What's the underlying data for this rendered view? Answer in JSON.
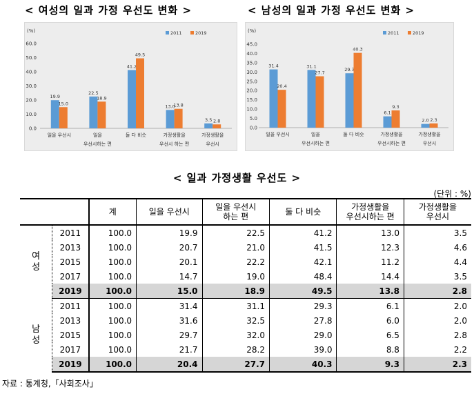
{
  "chart_data": [
    {
      "type": "bar",
      "title": "< 여성의 일과 가정 우선도 변화 >",
      "ylabel": "(%)",
      "ylim": [
        0,
        60
      ],
      "yticks": [
        0.0,
        10.0,
        20.0,
        30.0,
        40.0,
        50.0,
        60.0
      ],
      "tick_labels": [
        "0.0",
        "10.0",
        "20.0",
        "30.0",
        "40.0",
        "50.0",
        "60.0"
      ],
      "legend": "top-right",
      "categories": [
        [
          "일을 우선시"
        ],
        [
          "일을",
          "우선시하는 편"
        ],
        [
          "둘 다 비슷"
        ],
        [
          "가정생활을",
          "우선시 하는 편"
        ],
        [
          "가정생활을",
          "우선시"
        ]
      ],
      "series": [
        {
          "name": "2011",
          "color": "#5B9BD5",
          "values": [
            19.9,
            22.5,
            41.2,
            13.0,
            3.5
          ],
          "labels": [
            "19.9",
            "22.5",
            "41.2",
            "13.0",
            "3.5"
          ]
        },
        {
          "name": "2019",
          "color": "#ED7D31",
          "values": [
            15.0,
            18.9,
            49.5,
            13.8,
            2.8
          ],
          "labels": [
            "15.0",
            "18.9",
            "49.5",
            "13.8",
            "2.8"
          ]
        }
      ]
    },
    {
      "type": "bar",
      "title": "< 남성의 일과 가정 우선도 변화 >",
      "ylabel": "(%)",
      "ylim": [
        0,
        45
      ],
      "yticks": [
        0.0,
        5.0,
        10.0,
        15.0,
        20.0,
        25.0,
        30.0,
        35.0,
        40.0,
        45.0
      ],
      "tick_labels": [
        "0.0",
        "5.0",
        "10.0",
        "15.0",
        "20.0",
        "25.0",
        "30.0",
        "35.0",
        "40.0",
        "45.0"
      ],
      "legend": "top-right",
      "categories": [
        [
          "일을 우선시"
        ],
        [
          "일을",
          "우선시하는 편"
        ],
        [
          "둘 다 비슷"
        ],
        [
          "가정생활을",
          "우선시하는 편"
        ],
        [
          "가정생활을",
          "우선시"
        ]
      ],
      "series": [
        {
          "name": "2011",
          "color": "#5B9BD5",
          "values": [
            31.4,
            31.1,
            29.3,
            6.1,
            2.0
          ],
          "labels": [
            "31.4",
            "31.1",
            "29.3",
            "6.1",
            "2.0"
          ]
        },
        {
          "name": "2019",
          "color": "#ED7D31",
          "values": [
            20.4,
            27.7,
            40.3,
            9.3,
            2.3
          ],
          "labels": [
            "20.4",
            "27.7",
            "40.3",
            "9.3",
            "2.3"
          ]
        }
      ]
    },
    {
      "type": "table",
      "title": "< 일과 가정생활 우선도 >",
      "unit": "(단위 : %)",
      "source": "자료 : 통계청,「사회조사」",
      "headers": [
        [
          "계"
        ],
        [
          "일을 우선시"
        ],
        [
          "일을 우선시",
          "하는 편"
        ],
        [
          "둘 다 비슷"
        ],
        [
          "가정생활을",
          "우선시하는 편"
        ],
        [
          "가정생활을",
          "우선시"
        ]
      ],
      "groups": [
        {
          "label": [
            "여",
            "성"
          ],
          "rows": [
            {
              "year": "2011",
              "values": [
                "100.0",
                "19.9",
                "22.5",
                "41.2",
                "13.0",
                "3.5"
              ],
              "highlight": false
            },
            {
              "year": "2013",
              "values": [
                "100.0",
                "20.7",
                "21.0",
                "41.5",
                "12.3",
                "4.6"
              ],
              "highlight": false
            },
            {
              "year": "2015",
              "values": [
                "100.0",
                "20.1",
                "22.2",
                "42.1",
                "11.2",
                "4.4"
              ],
              "highlight": false
            },
            {
              "year": "2017",
              "values": [
                "100.0",
                "14.7",
                "19.0",
                "48.4",
                "14.4",
                "3.5"
              ],
              "highlight": false
            },
            {
              "year": "2019",
              "values": [
                "100.0",
                "15.0",
                "18.9",
                "49.5",
                "13.8",
                "2.8"
              ],
              "highlight": true
            }
          ]
        },
        {
          "label": [
            "남",
            "성"
          ],
          "rows": [
            {
              "year": "2011",
              "values": [
                "100.0",
                "31.4",
                "31.1",
                "29.3",
                "6.1",
                "2.0"
              ],
              "highlight": false
            },
            {
              "year": "2013",
              "values": [
                "100.0",
                "31.6",
                "32.5",
                "27.8",
                "6.0",
                "2.0"
              ],
              "highlight": false
            },
            {
              "year": "2015",
              "values": [
                "100.0",
                "29.7",
                "32.0",
                "29.0",
                "6.5",
                "2.8"
              ],
              "highlight": false
            },
            {
              "year": "2017",
              "values": [
                "100.0",
                "21.7",
                "28.2",
                "39.0",
                "8.8",
                "2.2"
              ],
              "highlight": false
            },
            {
              "year": "2019",
              "values": [
                "100.0",
                "20.4",
                "27.7",
                "40.3",
                "9.3",
                "2.3"
              ],
              "highlight": true
            }
          ]
        }
      ]
    }
  ]
}
